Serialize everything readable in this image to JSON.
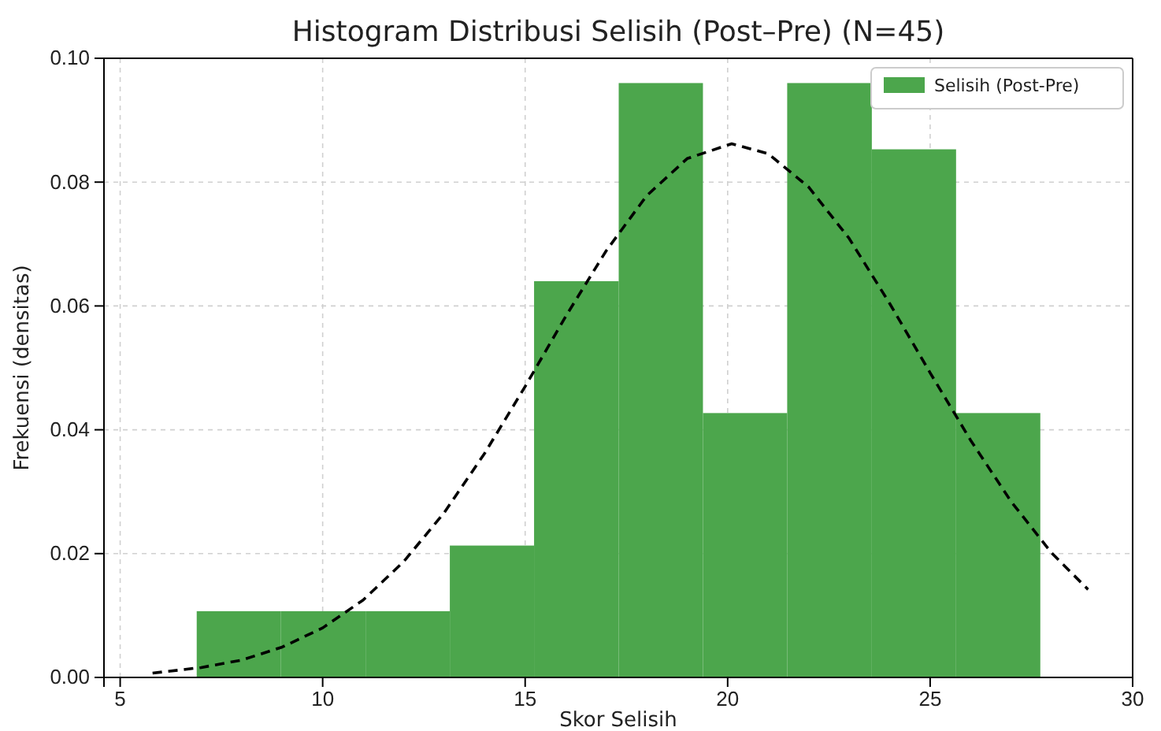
{
  "chart_data": {
    "type": "histogram",
    "title": "Histogram Distribusi Selisih (Post–Pre) (N=45)",
    "xlabel": "Skor Selisih",
    "ylabel": "Frekuensi (densitas)",
    "xlim": [
      4.6,
      30
    ],
    "xticks": [
      5,
      10,
      15,
      20,
      25,
      30
    ],
    "ylim": [
      0,
      0.1
    ],
    "yticks": [
      {
        "value": 0,
        "label": "0.00"
      },
      {
        "value": 0.02,
        "label": "0.02"
      },
      {
        "value": 0.04,
        "label": "0.04"
      },
      {
        "value": 0.06,
        "label": "0.06"
      },
      {
        "value": 0.08,
        "label": "0.08"
      },
      {
        "value": 0.1,
        "label": "0.10"
      }
    ],
    "grid": true,
    "legend": "top right",
    "series": [
      {
        "name": "Selisih (Post-Pre)",
        "color": "#4ca64c",
        "bins": [
          6.89,
          8.97,
          11.06,
          13.14,
          15.22,
          17.31,
          19.39,
          21.47,
          23.56,
          25.64,
          27.72
        ],
        "values": [
          0.0107,
          0.0107,
          0.0107,
          0.0213,
          0.064,
          0.096,
          0.0427,
          0.096,
          0.0853,
          0.0427
        ]
      },
      {
        "type": "line",
        "color": "#000000",
        "line_style": "dashed",
        "marker": "none",
        "x": [
          5.8,
          7,
          8,
          9,
          10,
          11,
          12,
          13,
          14,
          15,
          16,
          17,
          18,
          19,
          20.1,
          21,
          22,
          23,
          24,
          25,
          26,
          27,
          28,
          28.9
        ],
        "values": [
          0.0007,
          0.0016,
          0.0028,
          0.0049,
          0.008,
          0.0125,
          0.0187,
          0.0266,
          0.0362,
          0.047,
          0.0583,
          0.0689,
          0.0778,
          0.0838,
          0.0862,
          0.0846,
          0.0792,
          0.0709,
          0.0604,
          0.0492,
          0.0383,
          0.0284,
          0.0201,
          0.0142
        ]
      }
    ]
  }
}
